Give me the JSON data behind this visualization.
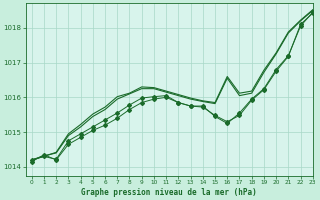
{
  "title": "Graphe pression niveau de la mer (hPa)",
  "background_color": "#c8eedd",
  "plot_bg_color": "#d8f4ec",
  "grid_color": "#a8d8c8",
  "line_color": "#1a6b2a",
  "xlim": [
    -0.5,
    23
  ],
  "ylim": [
    1013.75,
    1018.7
  ],
  "yticks": [
    1014,
    1015,
    1016,
    1017,
    1018
  ],
  "xticks": [
    0,
    1,
    2,
    3,
    4,
    5,
    6,
    7,
    8,
    9,
    10,
    11,
    12,
    13,
    14,
    15,
    16,
    17,
    18,
    19,
    20,
    21,
    22,
    23
  ],
  "series1_straight": [
    1014.15,
    1014.35,
    1014.2,
    1014.65,
    1014.85,
    1015.05,
    1015.2,
    1015.4,
    1015.65,
    1015.85,
    1015.95,
    1016.0,
    1015.85,
    1015.75,
    1015.75,
    1015.45,
    1015.25,
    1015.55,
    1015.95,
    1016.25,
    1016.8,
    1017.2,
    1018.05,
    1018.45
  ],
  "series2_marked": [
    1014.2,
    1014.3,
    1014.22,
    1014.75,
    1014.95,
    1015.15,
    1015.35,
    1015.55,
    1015.78,
    1015.98,
    1016.02,
    1016.05,
    1015.85,
    1015.75,
    1015.72,
    1015.48,
    1015.3,
    1015.48,
    1015.92,
    1016.22,
    1016.75,
    1017.18,
    1018.1,
    1018.42
  ],
  "series3_upper": [
    1014.2,
    1014.32,
    1014.4,
    1014.9,
    1015.15,
    1015.45,
    1015.65,
    1015.95,
    1016.1,
    1016.25,
    1016.25,
    1016.15,
    1016.05,
    1015.95,
    1015.88,
    1015.82,
    1016.55,
    1016.05,
    1016.12,
    1016.72,
    1017.25,
    1017.85,
    1018.2,
    1018.5
  ],
  "series4_top": [
    1014.2,
    1014.3,
    1014.42,
    1014.95,
    1015.22,
    1015.52,
    1015.72,
    1016.02,
    1016.12,
    1016.3,
    1016.28,
    1016.18,
    1016.08,
    1015.98,
    1015.9,
    1015.85,
    1016.6,
    1016.12,
    1016.18,
    1016.78,
    1017.28,
    1017.88,
    1018.22,
    1018.52
  ]
}
